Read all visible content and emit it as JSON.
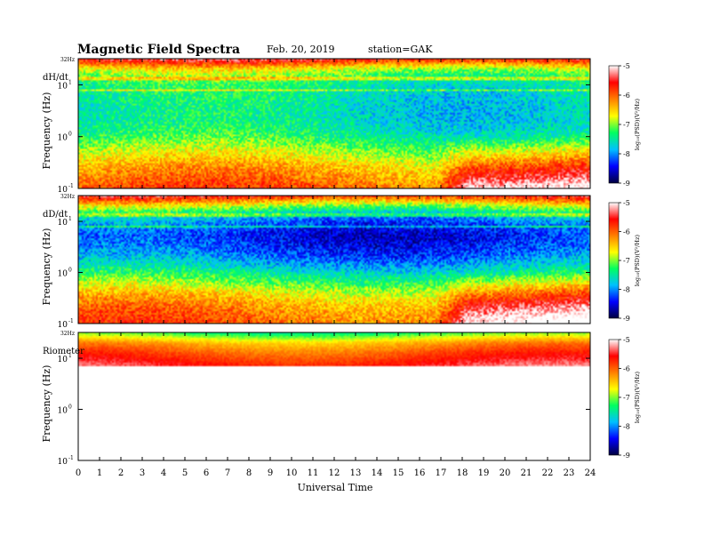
{
  "header": {
    "title": "Magnetic  Field  Spectra",
    "date": "Feb. 20, 2019",
    "station": "station=GAK"
  },
  "chart_data": {
    "type": "heatmap",
    "title": "Magnetic  Field  Spectra",
    "xlabel": "Universal Time",
    "x_ticks": [
      "0",
      "1",
      "2",
      "3",
      "4",
      "5",
      "6",
      "7",
      "8",
      "9",
      "10",
      "11",
      "12",
      "13",
      "14",
      "15",
      "16",
      "17",
      "18",
      "19",
      "20",
      "21",
      "22",
      "23",
      "24"
    ],
    "xlim": [
      0,
      24
    ],
    "ylabel": "Frequency  (Hz)",
    "y_scale": "log",
    "ylim": [
      0.1,
      32
    ],
    "y_top_label": "32Hz",
    "y_ticks": [
      {
        "base": "10",
        "exp": "1",
        "value": 10
      },
      {
        "base": "10",
        "exp": "0",
        "value": 1
      },
      {
        "base": "10",
        "exp": "-1",
        "value": 0.1
      }
    ],
    "colorbar": {
      "label": "log₁₀(PSD)(V²/Hz)",
      "ticks": [
        "-5",
        "-6",
        "-7",
        "-8",
        "-9"
      ],
      "range": [
        -9,
        -5
      ],
      "colors": [
        "#000040",
        "#0000ff",
        "#00c0ff",
        "#00ff60",
        "#ffff00",
        "#ff8000",
        "#ff0000",
        "#ffffff"
      ]
    },
    "panels": [
      {
        "name": "dH/dt",
        "profile": [
          -5.6,
          -6.8,
          -7.3,
          -7.5,
          -7.55,
          -7.6,
          -7.6,
          -7.5,
          -7.3,
          -7.0,
          -6.7,
          -6.4,
          -6.2,
          -6.0
        ],
        "line_freqs_hz": [
          8,
          14
        ]
      },
      {
        "name": "dD/dt",
        "profile": [
          -5.7,
          -6.9,
          -7.8,
          -8.2,
          -8.4,
          -8.3,
          -8.1,
          -7.8,
          -7.4,
          -7.0,
          -6.6,
          -6.3,
          -6.1,
          -6.0
        ],
        "line_freqs_hz": [
          8,
          14
        ]
      },
      {
        "name": "Riometer",
        "profile": [
          -7.2,
          -6.3,
          -5.9,
          -5.6,
          -5.3,
          -5.2,
          -5.1,
          -5.05,
          -5.0,
          -5.0,
          -5.0,
          -5.0,
          -5.0,
          -5.0
        ],
        "line_freqs_hz": []
      }
    ]
  }
}
